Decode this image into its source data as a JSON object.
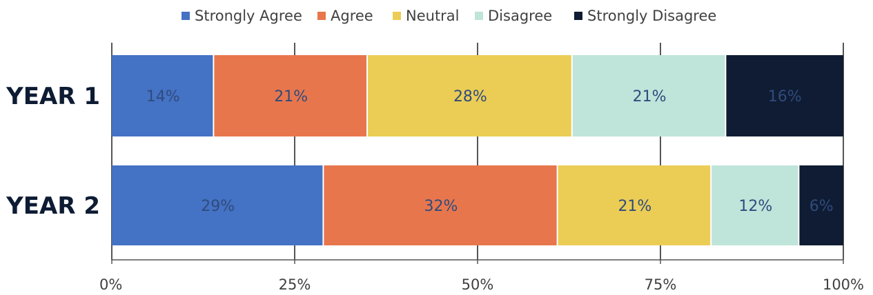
{
  "chart_data": {
    "type": "bar",
    "orientation": "horizontal",
    "stacked": true,
    "normalized": true,
    "categories": [
      "YEAR 1",
      "YEAR 2"
    ],
    "series": [
      {
        "name": "Strongly Agree",
        "color": "#4472c4",
        "values": [
          14,
          29
        ],
        "labels": [
          "14%",
          "29%"
        ]
      },
      {
        "name": "Agree",
        "color": "#e8764d",
        "values": [
          21,
          32
        ],
        "labels": [
          "21%",
          "32%"
        ]
      },
      {
        "name": "Neutral",
        "color": "#ebcd55",
        "values": [
          28,
          21
        ],
        "labels": [
          "28%",
          "21%"
        ]
      },
      {
        "name": "Disagree",
        "color": "#bfe4da",
        "values": [
          21,
          12
        ],
        "labels": [
          "21%",
          "12%"
        ]
      },
      {
        "name": "Strongly Disagree",
        "color": "#0f1c33",
        "values": [
          16,
          6
        ],
        "labels": [
          "16%",
          "6%"
        ]
      }
    ],
    "x_ticks": [
      "0%",
      "25%",
      "50%",
      "75%",
      "100%"
    ],
    "xlim": [
      0,
      100
    ],
    "legend_position": "top",
    "grid": true
  }
}
